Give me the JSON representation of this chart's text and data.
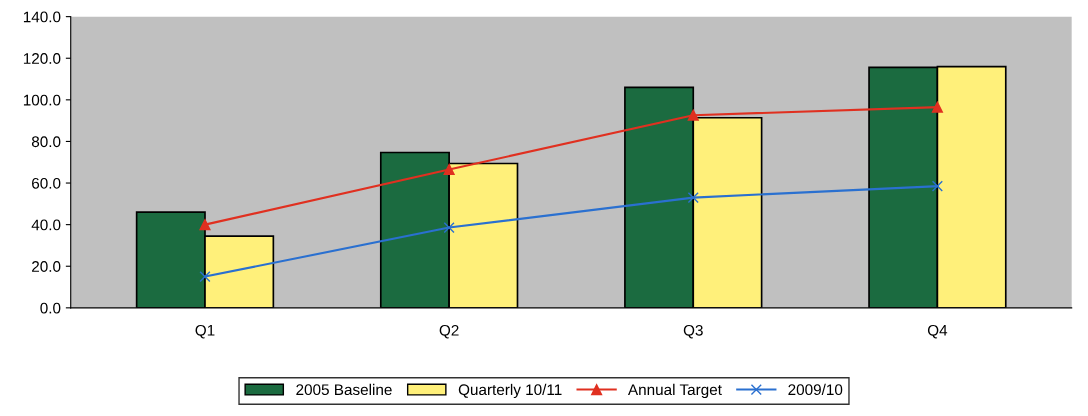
{
  "chart_data": {
    "type": "bar",
    "categories": [
      "Q1",
      "Q2",
      "Q3",
      "Q4"
    ],
    "series": [
      {
        "name": "2005 Baseline",
        "color": "#1b6b40",
        "values": [
          46,
          74.7,
          106,
          115.6
        ]
      },
      {
        "name": "Quarterly 10/11",
        "color": "#fff07a",
        "values": [
          34.5,
          69.4,
          91.4,
          116
        ]
      },
      {
        "name": "Annual Target",
        "type": "line",
        "color": "#e03020",
        "marker": "triangle",
        "values": [
          40,
          66.5,
          92.6,
          96.5
        ]
      },
      {
        "name": "2009/10",
        "type": "line",
        "color": "#2a70d0",
        "marker": "cross",
        "values": [
          15,
          38.6,
          53,
          58.5
        ]
      }
    ],
    "ylim": [
      0,
      140
    ],
    "yticks": [
      {
        "value": 0,
        "label": "0.0"
      },
      {
        "value": 20,
        "label": "20.0"
      },
      {
        "value": 40,
        "label": "40.0"
      },
      {
        "value": 60,
        "label": "60.0"
      },
      {
        "value": 80,
        "label": "80.0"
      },
      {
        "value": 100,
        "label": "100.0"
      },
      {
        "value": 120,
        "label": "120.0"
      },
      {
        "value": 140,
        "label": "140.0"
      }
    ],
    "grid": false,
    "legend": "bottom"
  }
}
